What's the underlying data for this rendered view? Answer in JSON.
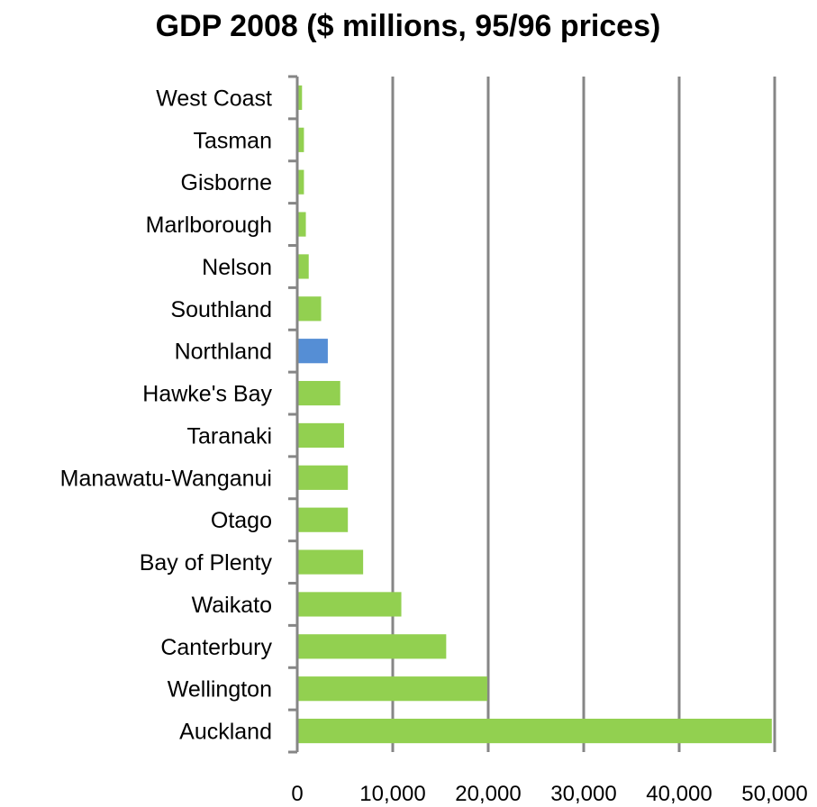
{
  "chart_data": {
    "type": "bar",
    "orientation": "horizontal",
    "title": "GDP 2008  ($ millions, 95/96 prices)",
    "xlabel": "",
    "ylabel": "",
    "categories": [
      "West Coast",
      "Tasman",
      "Gisborne",
      "Marlborough",
      "Nelson",
      "Southland",
      "Northland",
      "Hawke's Bay",
      "Taranaki",
      "Manawatu-Wanganui",
      "Otago",
      "Bay of Plenty",
      "Waikato",
      "Canterbury",
      "Wellington",
      "Auckland"
    ],
    "values": [
      500,
      700,
      700,
      900,
      1200,
      2500,
      3200,
      4500,
      4900,
      5300,
      5300,
      6900,
      10900,
      15600,
      19900,
      49700
    ],
    "highlight_category": "Northland",
    "xlim": [
      0,
      50000
    ],
    "x_ticks": [
      0,
      10000,
      20000,
      30000,
      40000,
      50000
    ],
    "x_tick_labels": [
      "0",
      "10,000",
      "20,000",
      "30,000",
      "40,000",
      "50,000"
    ],
    "grid": "vertical",
    "legend": "none",
    "colors": {
      "bar": "#92d050",
      "highlight": "#558ed5",
      "grid": "#868686",
      "axis": "#868686"
    }
  }
}
